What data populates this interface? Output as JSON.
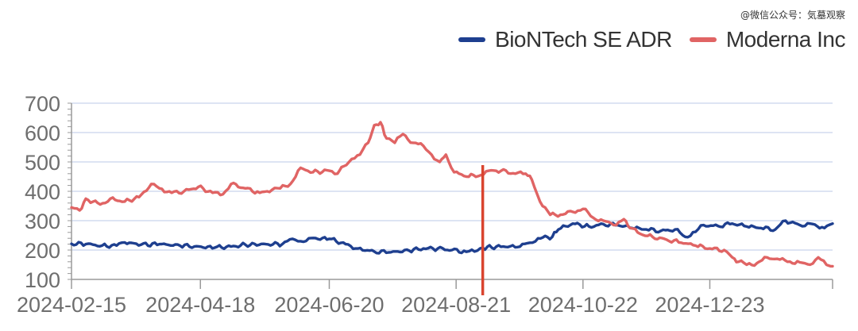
{
  "watermark": "@微信公众号：気墓观察",
  "colors": {
    "biontech": "#1e3f8f",
    "moderna": "#e06464",
    "marker": "#d9442f",
    "grid": "#dde4f3",
    "axis": "#9a9a9a"
  },
  "chart_data": {
    "type": "line",
    "title": "",
    "xlabel": "",
    "ylabel": "",
    "ylim": [
      100,
      700
    ],
    "yticks": [
      "100",
      "200",
      "300",
      "400",
      "500",
      "600",
      "700"
    ],
    "xlim": [
      "2024-02-15",
      "2025-02-21"
    ],
    "xticks": [
      "2024-02-15",
      "2024-04-18",
      "2024-06-20",
      "2024-08-21",
      "2024-10-22",
      "2024-12-23"
    ],
    "grid": true,
    "legend_position": "top-right",
    "vertical_marker_date": "2024-09-03",
    "series": [
      {
        "name": "BioNTech SE ADR",
        "color": "#1e3f8f",
        "points": [
          [
            "2024-02-15",
            221
          ],
          [
            "2024-02-22",
            220
          ],
          [
            "2024-03-01",
            215
          ],
          [
            "2024-03-08",
            215
          ],
          [
            "2024-03-12",
            226
          ],
          [
            "2024-03-20",
            218
          ],
          [
            "2024-03-29",
            220
          ],
          [
            "2024-04-08",
            215
          ],
          [
            "2024-04-15",
            212
          ],
          [
            "2024-04-25",
            208
          ],
          [
            "2024-05-03",
            212
          ],
          [
            "2024-05-10",
            218
          ],
          [
            "2024-05-20",
            220
          ],
          [
            "2024-05-28",
            220
          ],
          [
            "2024-06-02",
            238
          ],
          [
            "2024-06-06",
            230
          ],
          [
            "2024-06-10",
            240
          ],
          [
            "2024-06-20",
            238
          ],
          [
            "2024-06-28",
            220
          ],
          [
            "2024-07-04",
            205
          ],
          [
            "2024-07-12",
            195
          ],
          [
            "2024-07-19",
            192
          ],
          [
            "2024-07-29",
            198
          ],
          [
            "2024-08-05",
            205
          ],
          [
            "2024-08-12",
            205
          ],
          [
            "2024-08-19",
            200
          ],
          [
            "2024-08-26",
            194
          ],
          [
            "2024-08-30",
            195
          ],
          [
            "2024-09-03",
            208
          ],
          [
            "2024-09-13",
            212
          ],
          [
            "2024-09-20",
            210
          ],
          [
            "2024-09-26",
            225
          ],
          [
            "2024-09-30",
            240
          ],
          [
            "2024-10-07",
            245
          ],
          [
            "2024-10-10",
            270
          ],
          [
            "2024-10-17",
            290
          ],
          [
            "2024-10-25",
            280
          ],
          [
            "2024-11-01",
            288
          ],
          [
            "2024-11-08",
            285
          ],
          [
            "2024-11-15",
            275
          ],
          [
            "2024-11-22",
            270
          ],
          [
            "2024-11-29",
            265
          ],
          [
            "2024-12-06",
            270
          ],
          [
            "2024-12-11",
            245
          ],
          [
            "2024-12-16",
            262
          ],
          [
            "2024-12-20",
            285
          ],
          [
            "2024-12-27",
            282
          ],
          [
            "2025-01-03",
            290
          ],
          [
            "2025-01-10",
            280
          ],
          [
            "2025-01-17",
            275
          ],
          [
            "2025-01-24",
            270
          ],
          [
            "2025-01-29",
            300
          ],
          [
            "2025-02-05",
            285
          ],
          [
            "2025-02-10",
            290
          ],
          [
            "2025-02-17",
            275
          ],
          [
            "2025-02-21",
            290
          ]
        ]
      },
      {
        "name": "Moderna Inc",
        "color": "#e06464",
        "points": [
          [
            "2024-02-15",
            345
          ],
          [
            "2024-02-19",
            335
          ],
          [
            "2024-02-22",
            375
          ],
          [
            "2024-02-29",
            355
          ],
          [
            "2024-03-05",
            375
          ],
          [
            "2024-03-12",
            365
          ],
          [
            "2024-03-19",
            380
          ],
          [
            "2024-03-25",
            425
          ],
          [
            "2024-03-29",
            410
          ],
          [
            "2024-04-04",
            395
          ],
          [
            "2024-04-10",
            400
          ],
          [
            "2024-04-17",
            415
          ],
          [
            "2024-04-24",
            395
          ],
          [
            "2024-04-29",
            390
          ],
          [
            "2024-05-03",
            425
          ],
          [
            "2024-05-10",
            410
          ],
          [
            "2024-05-17",
            395
          ],
          [
            "2024-05-23",
            405
          ],
          [
            "2024-05-27",
            410
          ],
          [
            "2024-06-01",
            425
          ],
          [
            "2024-06-06",
            480
          ],
          [
            "2024-06-12",
            465
          ],
          [
            "2024-06-20",
            470
          ],
          [
            "2024-06-24",
            460
          ],
          [
            "2024-06-27",
            485
          ],
          [
            "2024-07-01",
            510
          ],
          [
            "2024-07-05",
            525
          ],
          [
            "2024-07-09",
            565
          ],
          [
            "2024-07-12",
            625
          ],
          [
            "2024-07-15",
            635
          ],
          [
            "2024-07-18",
            580
          ],
          [
            "2024-07-22",
            565
          ],
          [
            "2024-07-26",
            595
          ],
          [
            "2024-07-31",
            565
          ],
          [
            "2024-08-05",
            555
          ],
          [
            "2024-08-09",
            525
          ],
          [
            "2024-08-13",
            500
          ],
          [
            "2024-08-16",
            525
          ],
          [
            "2024-08-20",
            465
          ],
          [
            "2024-08-26",
            450
          ],
          [
            "2024-09-02",
            455
          ],
          [
            "2024-09-06",
            470
          ],
          [
            "2024-09-12",
            470
          ],
          [
            "2024-09-19",
            460
          ],
          [
            "2024-09-24",
            460
          ],
          [
            "2024-09-27",
            440
          ],
          [
            "2024-10-01",
            365
          ],
          [
            "2024-10-06",
            320
          ],
          [
            "2024-10-11",
            320
          ],
          [
            "2024-10-17",
            330
          ],
          [
            "2024-10-22",
            340
          ],
          [
            "2024-10-27",
            310
          ],
          [
            "2024-11-01",
            300
          ],
          [
            "2024-11-06",
            285
          ],
          [
            "2024-11-11",
            305
          ],
          [
            "2024-11-14",
            275
          ],
          [
            "2024-11-19",
            255
          ],
          [
            "2024-11-25",
            245
          ],
          [
            "2024-12-02",
            235
          ],
          [
            "2024-12-09",
            225
          ],
          [
            "2024-12-16",
            215
          ],
          [
            "2024-12-23",
            205
          ],
          [
            "2024-12-30",
            200
          ],
          [
            "2025-01-03",
            175
          ],
          [
            "2025-01-06",
            160
          ],
          [
            "2025-01-10",
            150
          ],
          [
            "2025-01-15",
            155
          ],
          [
            "2025-01-20",
            175
          ],
          [
            "2025-01-25",
            170
          ],
          [
            "2025-01-30",
            160
          ],
          [
            "2025-02-05",
            158
          ],
          [
            "2025-02-10",
            150
          ],
          [
            "2025-02-14",
            175
          ],
          [
            "2025-02-18",
            150
          ],
          [
            "2025-02-21",
            145
          ]
        ]
      }
    ]
  }
}
